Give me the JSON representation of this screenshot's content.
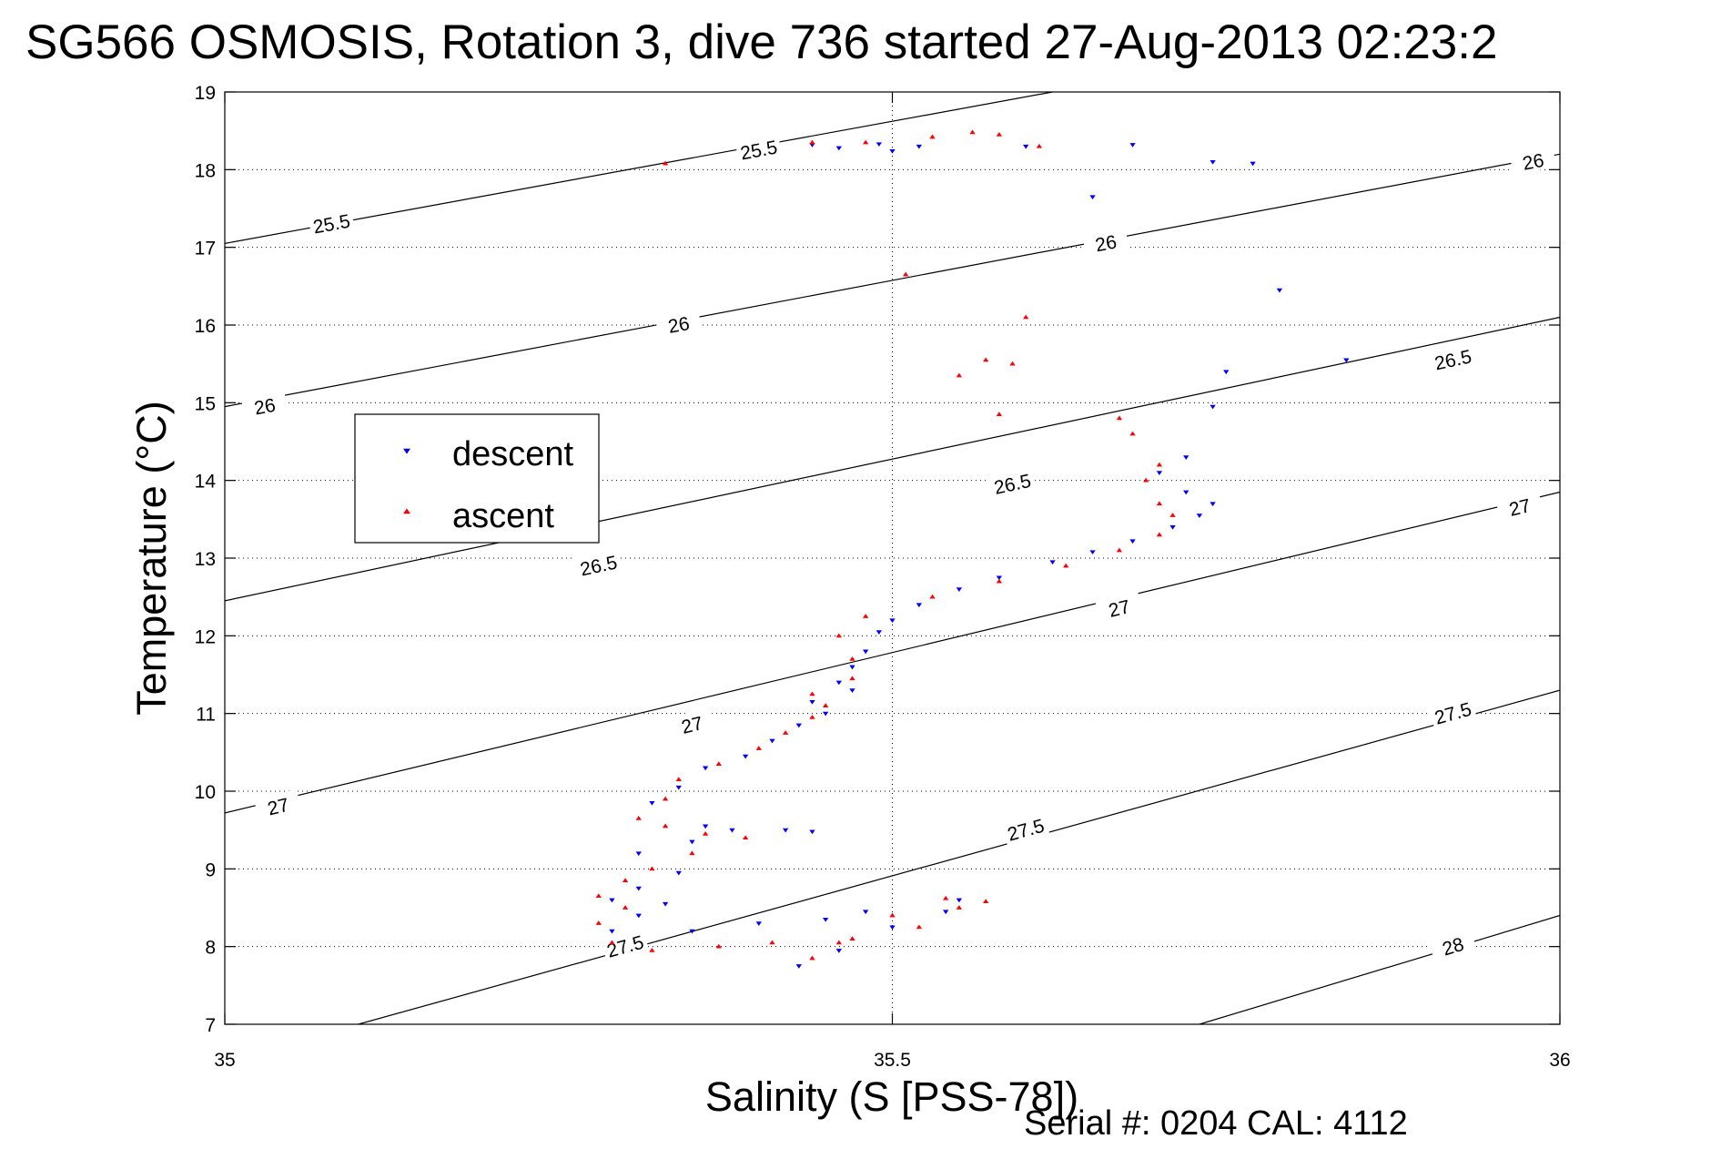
{
  "chart_data": {
    "type": "scatter",
    "title": "SG566 OSMOSIS, Rotation 3, dive 736 started 27-Aug-2013 02:23:2",
    "xlabel": "Salinity (S [PSS-78])",
    "ylabel": "Temperature (°C)",
    "footer": "Serial #: 0204  CAL: 4112",
    "xlim": [
      35,
      36
    ],
    "ylim": [
      7,
      19
    ],
    "xticks": [
      35,
      35.5,
      36
    ],
    "xtick_labels": [
      "35",
      "35.5",
      "36"
    ],
    "yticks": [
      7,
      8,
      9,
      10,
      11,
      12,
      13,
      14,
      15,
      16,
      17,
      18,
      19
    ],
    "ytick_labels": [
      "7",
      "8",
      "9",
      "10",
      "11",
      "12",
      "13",
      "14",
      "15",
      "16",
      "17",
      "18",
      "19"
    ],
    "grid": true,
    "legend_position": "upper-left",
    "contour_lines": [
      {
        "level": "25.5",
        "segments": [
          [
            [
              35,
              17.05
            ],
            [
              35.62,
              19
            ]
          ]
        ],
        "labels": [
          [
            35.08,
            17.3
          ],
          [
            35.4,
            18.25
          ]
        ]
      },
      {
        "level": "26",
        "segments": [
          [
            [
              35,
              14.95
            ],
            [
              36,
              18.2
            ]
          ]
        ],
        "labels": [
          [
            35.03,
            14.95
          ],
          [
            35.34,
            16.0
          ],
          [
            35.66,
            17.05
          ],
          [
            35.98,
            18.1
          ]
        ]
      },
      {
        "level": "26.5",
        "segments": [
          [
            [
              35,
              12.45
            ],
            [
              36,
              16.1
            ]
          ]
        ],
        "labels": [
          [
            35.28,
            12.9
          ],
          [
            35.59,
            13.95
          ],
          [
            35.92,
            15.55
          ]
        ]
      },
      {
        "level": "27",
        "segments": [
          [
            [
              35,
              9.72
            ],
            [
              36,
              13.85
            ]
          ]
        ],
        "labels": [
          [
            35.04,
            9.8
          ],
          [
            35.35,
            10.85
          ],
          [
            35.67,
            12.35
          ],
          [
            35.97,
            13.65
          ]
        ]
      },
      {
        "level": "27.5",
        "segments": [
          [
            [
              35.1,
              7.0
            ],
            [
              36,
              11.3
            ]
          ]
        ],
        "labels": [
          [
            35.3,
            8.0
          ],
          [
            35.6,
            9.5
          ],
          [
            35.92,
            11.0
          ]
        ]
      },
      {
        "level": "28",
        "segments": [
          [
            [
              35.73,
              7.0
            ],
            [
              36,
              8.4
            ]
          ]
        ],
        "labels": [
          [
            35.92,
            8.0
          ]
        ]
      }
    ],
    "series": [
      {
        "name": "descent",
        "color": "#0000ff",
        "marker": "triangle-down",
        "points": [
          [
            35.44,
            18.32
          ],
          [
            35.46,
            18.28
          ],
          [
            35.49,
            18.33
          ],
          [
            35.5,
            18.24
          ],
          [
            35.52,
            18.3
          ],
          [
            35.6,
            18.3
          ],
          [
            35.68,
            18.32
          ],
          [
            35.74,
            18.1
          ],
          [
            35.77,
            18.08
          ],
          [
            35.65,
            17.65
          ],
          [
            35.79,
            16.45
          ],
          [
            35.84,
            15.55
          ],
          [
            35.75,
            15.4
          ],
          [
            35.74,
            14.95
          ],
          [
            35.72,
            14.3
          ],
          [
            35.7,
            14.1
          ],
          [
            35.72,
            13.85
          ],
          [
            35.74,
            13.7
          ],
          [
            35.73,
            13.55
          ],
          [
            35.71,
            13.4
          ],
          [
            35.68,
            13.22
          ],
          [
            35.65,
            13.08
          ],
          [
            35.62,
            12.95
          ],
          [
            35.58,
            12.75
          ],
          [
            35.55,
            12.6
          ],
          [
            35.52,
            12.4
          ],
          [
            35.5,
            12.2
          ],
          [
            35.49,
            12.05
          ],
          [
            35.48,
            11.8
          ],
          [
            35.47,
            11.6
          ],
          [
            35.46,
            11.4
          ],
          [
            35.47,
            11.3
          ],
          [
            35.44,
            11.15
          ],
          [
            35.45,
            11.0
          ],
          [
            35.43,
            10.85
          ],
          [
            35.41,
            10.65
          ],
          [
            35.39,
            10.45
          ],
          [
            35.36,
            10.3
          ],
          [
            35.34,
            10.05
          ],
          [
            35.32,
            9.85
          ],
          [
            35.36,
            9.55
          ],
          [
            35.42,
            9.5
          ],
          [
            35.44,
            9.48
          ],
          [
            35.38,
            9.5
          ],
          [
            35.35,
            9.35
          ],
          [
            35.31,
            9.2
          ],
          [
            35.34,
            8.95
          ],
          [
            35.31,
            8.75
          ],
          [
            35.29,
            8.6
          ],
          [
            35.33,
            8.55
          ],
          [
            35.31,
            8.4
          ],
          [
            35.29,
            8.2
          ],
          [
            35.35,
            8.2
          ],
          [
            35.4,
            8.3
          ],
          [
            35.45,
            8.35
          ],
          [
            35.48,
            8.45
          ],
          [
            35.55,
            8.6
          ],
          [
            35.54,
            8.45
          ],
          [
            35.5,
            8.25
          ],
          [
            35.46,
            7.95
          ],
          [
            35.43,
            7.75
          ]
        ]
      },
      {
        "name": "ascent",
        "color": "#ff0000",
        "marker": "triangle-up",
        "points": [
          [
            35.33,
            18.08
          ],
          [
            35.44,
            18.35
          ],
          [
            35.48,
            18.35
          ],
          [
            35.53,
            18.42
          ],
          [
            35.56,
            18.48
          ],
          [
            35.58,
            18.45
          ],
          [
            35.61,
            18.3
          ],
          [
            35.51,
            16.65
          ],
          [
            35.6,
            16.1
          ],
          [
            35.57,
            15.55
          ],
          [
            35.59,
            15.5
          ],
          [
            35.55,
            15.35
          ],
          [
            35.58,
            14.85
          ],
          [
            35.67,
            14.8
          ],
          [
            35.68,
            14.6
          ],
          [
            35.7,
            14.2
          ],
          [
            35.69,
            14.0
          ],
          [
            35.7,
            13.7
          ],
          [
            35.71,
            13.55
          ],
          [
            35.7,
            13.3
          ],
          [
            35.67,
            13.1
          ],
          [
            35.63,
            12.9
          ],
          [
            35.58,
            12.7
          ],
          [
            35.53,
            12.5
          ],
          [
            35.48,
            12.25
          ],
          [
            35.46,
            12.0
          ],
          [
            35.47,
            11.7
          ],
          [
            35.47,
            11.45
          ],
          [
            35.44,
            11.25
          ],
          [
            35.45,
            11.1
          ],
          [
            35.44,
            10.95
          ],
          [
            35.42,
            10.75
          ],
          [
            35.4,
            10.55
          ],
          [
            35.37,
            10.35
          ],
          [
            35.34,
            10.15
          ],
          [
            35.33,
            9.9
          ],
          [
            35.31,
            9.65
          ],
          [
            35.33,
            9.55
          ],
          [
            35.36,
            9.45
          ],
          [
            35.39,
            9.4
          ],
          [
            35.35,
            9.2
          ],
          [
            35.32,
            9.0
          ],
          [
            35.3,
            8.85
          ],
          [
            35.28,
            8.65
          ],
          [
            35.3,
            8.5
          ],
          [
            35.28,
            8.3
          ],
          [
            35.29,
            8.05
          ],
          [
            35.32,
            7.95
          ],
          [
            35.37,
            8.0
          ],
          [
            35.41,
            8.05
          ],
          [
            35.47,
            8.1
          ],
          [
            35.52,
            8.25
          ],
          [
            35.55,
            8.5
          ],
          [
            35.57,
            8.58
          ],
          [
            35.54,
            8.62
          ],
          [
            35.5,
            8.4
          ],
          [
            35.46,
            8.05
          ],
          [
            35.44,
            7.85
          ]
        ]
      }
    ]
  }
}
